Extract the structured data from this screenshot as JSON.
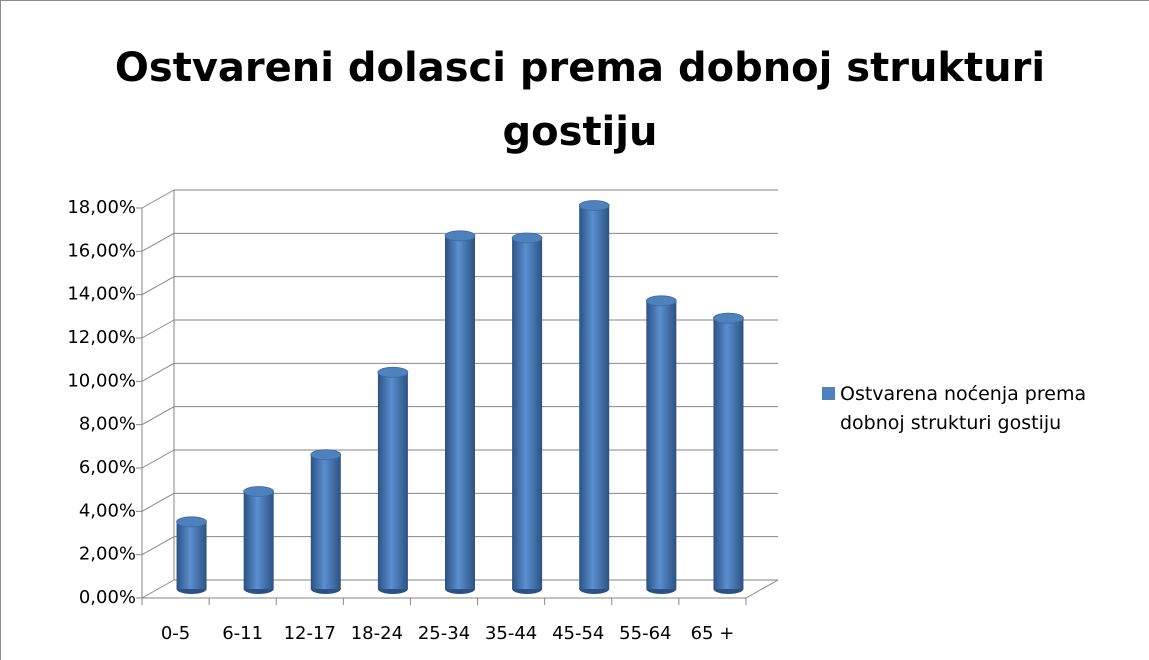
{
  "chart_data": {
    "type": "bar3d",
    "title": "Ostvareni dolasci prema dobnoj strukturi gostiju",
    "categories": [
      "0-5",
      "6-11",
      "12-17",
      "18-24",
      "25-34",
      "35-44",
      "45-54",
      "55-64",
      "65 +"
    ],
    "series": [
      {
        "name": "Ostvarena noćenja prema dobnoj strukturi gostiju",
        "color": "#4f81bd",
        "values": [
          3.1,
          4.5,
          6.2,
          10.0,
          16.3,
          16.2,
          17.7,
          13.3,
          12.5
        ]
      }
    ],
    "ylim": [
      0,
      18
    ],
    "yticks": [
      {
        "value": 0,
        "label": "0,00%"
      },
      {
        "value": 2,
        "label": "2,00%"
      },
      {
        "value": 4,
        "label": "4,00%"
      },
      {
        "value": 6,
        "label": "6,00%"
      },
      {
        "value": 8,
        "label": "8,00%"
      },
      {
        "value": 10,
        "label": "10,00%"
      },
      {
        "value": 12,
        "label": "12,00%"
      },
      {
        "value": 14,
        "label": "14,00%"
      },
      {
        "value": 16,
        "label": "16,00%"
      },
      {
        "value": 18,
        "label": "18,00%"
      }
    ],
    "grid": true,
    "legend": "right"
  }
}
